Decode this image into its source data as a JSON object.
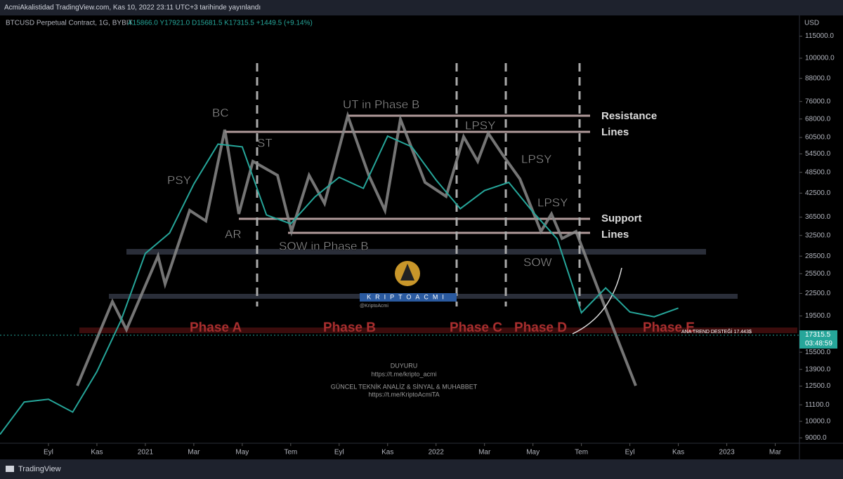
{
  "header": {
    "published": "AcmiAkalistidad TradingView.com, Kas 10, 2022 23:11 UTC+3 tarihinde yayınlandı",
    "symbol": "BTCUSD Perpetual Contract, 1G, BYBIT",
    "ohlc": "A15866.0 Y17921.0 D15681.5 K17315.5 +1449.5 (+9.14%)",
    "currency": "USD",
    "brand": "TradingView"
  },
  "chart_data": {
    "type": "line",
    "log_scale": true,
    "grid": false,
    "x": [
      "2020-07",
      "2020-08",
      "2020-09",
      "2020-10",
      "2020-11",
      "2020-12",
      "2021-01",
      "2021-02",
      "2021-03",
      "2021-04",
      "2021-05",
      "2021-06",
      "2021-07",
      "2021-08",
      "2021-09",
      "2021-10",
      "2021-11",
      "2021-12",
      "2022-01",
      "2022-02",
      "2022-03",
      "2022-04",
      "2022-05",
      "2022-06",
      "2022-07",
      "2022-08",
      "2022-09",
      "2022-10",
      "2022-11"
    ],
    "series": [
      {
        "name": "BTCUSD",
        "color": "#26a69a",
        "values": [
          9200,
          11300,
          11500,
          10600,
          13700,
          19000,
          29000,
          33000,
          45000,
          58000,
          57000,
          37000,
          35000,
          41500,
          47000,
          43800,
          61000,
          57000,
          46200,
          38500,
          43200,
          45500,
          37700,
          31800,
          19900,
          23300,
          20000,
          19400,
          20500
        ]
      }
    ],
    "xlim": [
      "2020-07",
      "2023-04"
    ],
    "xticks": [
      {
        "value": "2020-09",
        "label": "Eyl"
      },
      {
        "value": "2020-11",
        "label": "Kas"
      },
      {
        "value": "2021-01",
        "label": "2021"
      },
      {
        "value": "2021-03",
        "label": "Mar"
      },
      {
        "value": "2021-05",
        "label": "May"
      },
      {
        "value": "2021-07",
        "label": "Tem"
      },
      {
        "value": "2021-09",
        "label": "Eyl"
      },
      {
        "value": "2021-11",
        "label": "Kas"
      },
      {
        "value": "2022-01",
        "label": "2022"
      },
      {
        "value": "2022-03",
        "label": "Mar"
      },
      {
        "value": "2022-05",
        "label": "May"
      },
      {
        "value": "2022-07",
        "label": "Tem"
      },
      {
        "value": "2022-09",
        "label": "Eyl"
      },
      {
        "value": "2022-11",
        "label": "Kas"
      },
      {
        "value": "2023-01",
        "label": "2023"
      },
      {
        "value": "2023-03",
        "label": "Mar"
      }
    ],
    "ylim": [
      8700,
      130000
    ],
    "yticks": [
      {
        "value": 9000,
        "label": "9000.0"
      },
      {
        "value": 10000,
        "label": "10000.0"
      },
      {
        "value": 11100,
        "label": "11100.0"
      },
      {
        "value": 12500,
        "label": "12500.0"
      },
      {
        "value": 13900,
        "label": "13900.0"
      },
      {
        "value": 15500,
        "label": "15500.0"
      },
      {
        "value": 19500,
        "label": "19500.0"
      },
      {
        "value": 22500,
        "label": "22500.0"
      },
      {
        "value": 25500,
        "label": "25500.0"
      },
      {
        "value": 28500,
        "label": "28500.0"
      },
      {
        "value": 32500,
        "label": "32500.0"
      },
      {
        "value": 36500,
        "label": "36500.0"
      },
      {
        "value": 42500,
        "label": "42500.0"
      },
      {
        "value": 48500,
        "label": "48500.0"
      },
      {
        "value": 54500,
        "label": "54500.0"
      },
      {
        "value": 60500,
        "label": "60500.0"
      },
      {
        "value": 68000,
        "label": "68000.0"
      },
      {
        "value": 76000,
        "label": "76000.0"
      },
      {
        "value": 88000,
        "label": "88000.0"
      },
      {
        "value": 100000,
        "label": "100000.0"
      },
      {
        "value": 115000,
        "label": "115000.0"
      }
    ],
    "last_price": 17315.5,
    "countdown": "03:48:59",
    "annotations": [
      "BC",
      "PSY",
      "AR",
      "ST",
      "UT in Phase B",
      "LPSY",
      "LPSY",
      "LPSY",
      "SOW in Phase B",
      "SOW",
      "Resistance",
      "Lines",
      "Support",
      "Lines",
      "Phase A",
      "Phase B",
      "Phase C",
      "Phase D",
      "Phase E",
      "ANA TREND DESTEĞİ 17.443$"
    ],
    "watermark": {
      "name": "KRIPTOACMI",
      "handle": "@KriptoAcmi",
      "notice": "DUYURU",
      "link1": "https://t.me/kripto_acmi",
      "tagline": "GÜNCEL TEKNİK ANALİZ & SİNYAL & MUHABBET",
      "link2": "https://t.me/KriptoAcmiTA"
    }
  }
}
